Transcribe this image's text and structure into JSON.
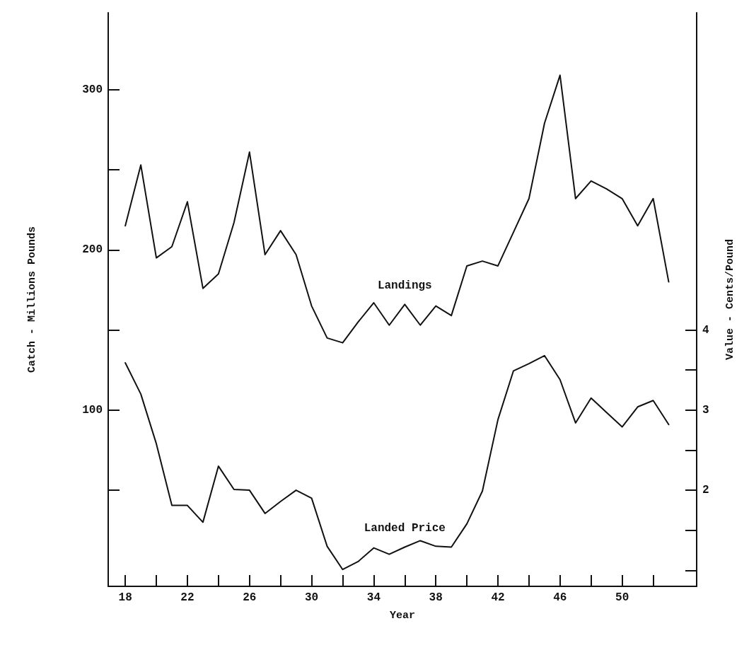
{
  "chart_data": {
    "type": "line",
    "xlabel": "Year",
    "ylabel": "Catch - Millions Pounds",
    "y2label": "Value - Cents/Pound",
    "x": [
      18,
      19,
      20,
      21,
      22,
      23,
      24,
      25,
      26,
      27,
      28,
      29,
      30,
      31,
      32,
      33,
      34,
      35,
      36,
      37,
      38,
      39,
      40,
      41,
      42,
      43,
      44,
      45,
      46,
      47,
      48,
      49,
      50,
      51,
      52,
      53
    ],
    "series": [
      {
        "name": "Landings",
        "color": "#111111",
        "values": [
          215,
          253,
          195,
          202,
          230,
          176,
          185,
          217,
          261,
          197,
          212,
          197,
          165,
          145,
          142,
          155,
          167,
          153,
          166,
          153,
          165,
          159,
          190,
          193,
          190,
          211,
          232,
          279,
          309,
          232,
          243,
          238,
          232,
          215,
          232,
          180
        ]
      },
      {
        "name": "Landed Price",
        "color": "#111111",
        "axis": "y2",
        "values": [
          3.59,
          3.2,
          2.58,
          1.81,
          1.81,
          1.6,
          2.3,
          2.01,
          2.0,
          1.71,
          1.86,
          2.0,
          1.9,
          1.3,
          1.01,
          1.11,
          1.28,
          1.2,
          1.29,
          1.37,
          1.3,
          1.29,
          1.58,
          1.99,
          2.88,
          3.49,
          3.58,
          3.68,
          3.38,
          2.84,
          3.15,
          2.97,
          2.79,
          3.04,
          3.12,
          2.82
        ]
      }
    ],
    "xlim": [
      16.9,
      54.8
    ],
    "xticks": [
      18,
      {
        "value": 20,
        "label": null
      },
      22,
      {
        "value": 24,
        "label": null
      },
      26,
      {
        "value": 28,
        "label": null
      },
      30,
      {
        "value": 32,
        "label": null
      },
      34,
      {
        "value": 36,
        "label": null
      },
      38,
      {
        "value": 40,
        "label": null
      },
      42,
      {
        "value": 44,
        "label": null
      },
      46,
      {
        "value": 48,
        "label": null
      },
      50,
      {
        "value": 52,
        "label": null
      }
    ],
    "ylim": [
      -10,
      348
    ],
    "yticks": [
      {
        "value": 50,
        "label": null
      },
      100,
      {
        "value": 150,
        "label": null
      },
      200,
      {
        "value": 250,
        "label": null
      },
      300
    ],
    "y2lim": [
      0.8,
      7.96
    ],
    "y2ticks": [
      {
        "value": 1,
        "label": null
      },
      {
        "value": 1.5,
        "label": null
      },
      2,
      {
        "value": 2.5,
        "label": null
      },
      3,
      {
        "value": 3.5,
        "label": null
      },
      4
    ],
    "grid": false,
    "legend": false,
    "marker": "none",
    "line_style": "solid"
  }
}
